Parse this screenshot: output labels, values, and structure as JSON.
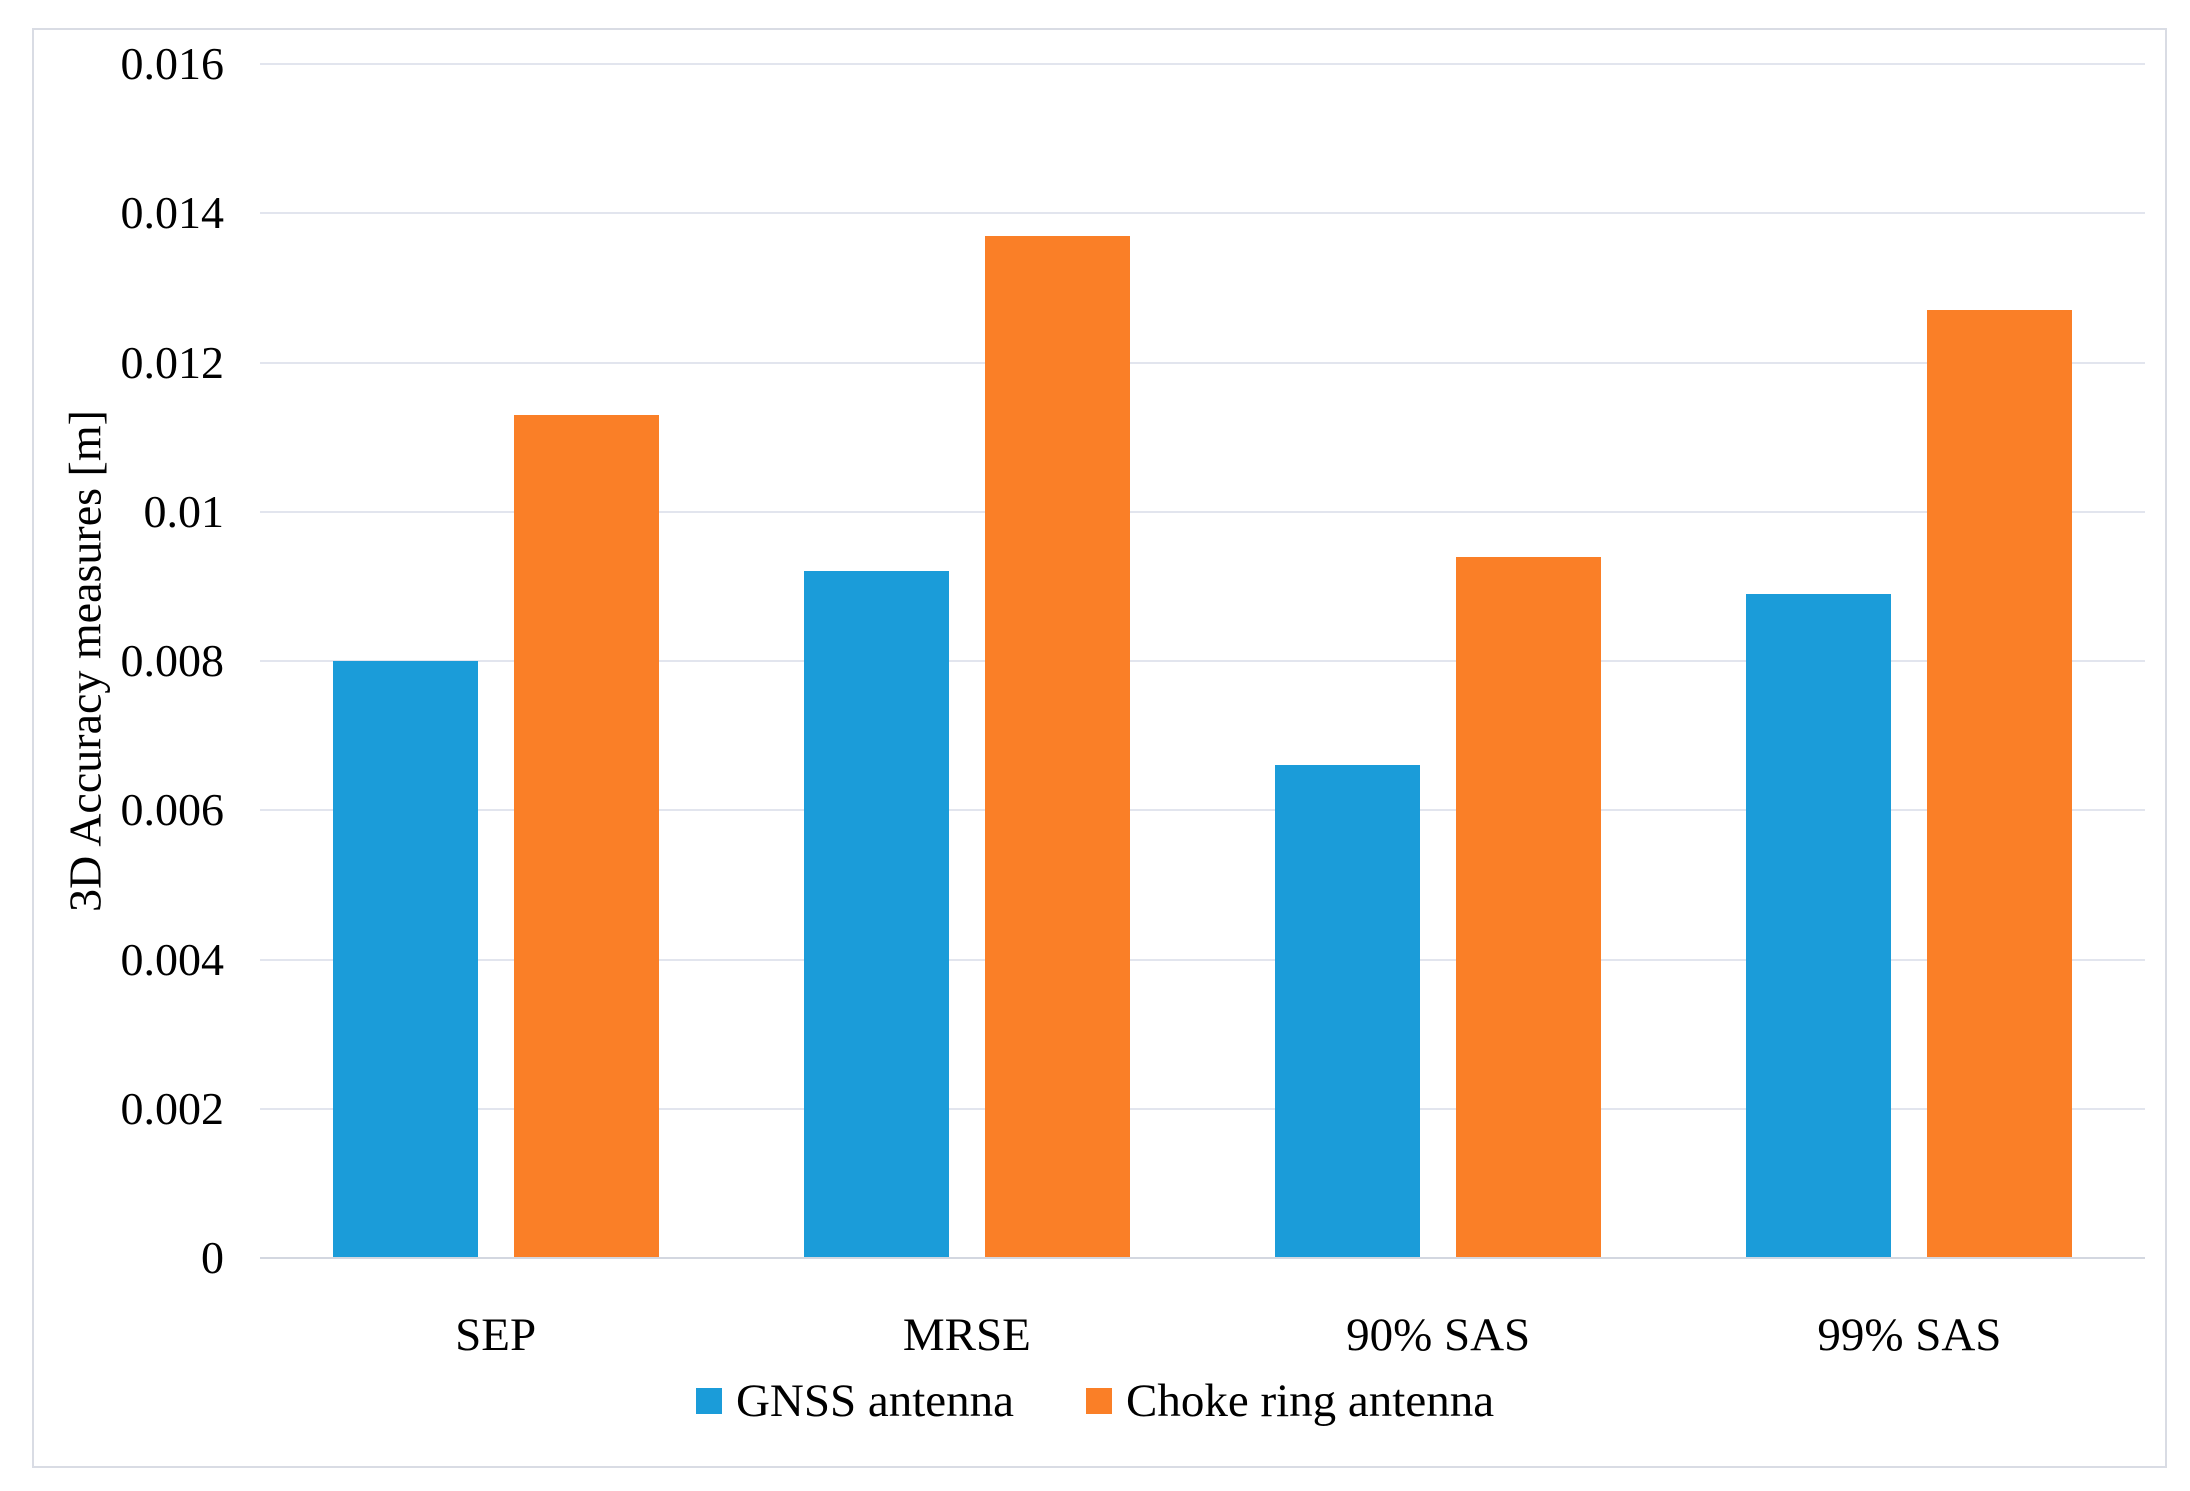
{
  "chart_data": {
    "type": "bar",
    "title": "",
    "xlabel": "",
    "ylabel": "3D Accuracy measures [m]",
    "categories": [
      "SEP",
      "MRSE",
      "90% SAS",
      "99% SAS"
    ],
    "series": [
      {
        "name": "GNSS antenna",
        "color": "#1b9cd9",
        "values": [
          0.008,
          0.0092,
          0.0066,
          0.0089
        ]
      },
      {
        "name": "Choke ring antenna",
        "color": "#fa7f27",
        "values": [
          0.0113,
          0.0137,
          0.0094,
          0.0127
        ]
      }
    ],
    "ylim": [
      0,
      0.016
    ],
    "yticks": [
      {
        "value": 0,
        "label": "0"
      },
      {
        "value": 0.002,
        "label": "0.002"
      },
      {
        "value": 0.004,
        "label": "0.004"
      },
      {
        "value": 0.006,
        "label": "0.006"
      },
      {
        "value": 0.008,
        "label": "0.008"
      },
      {
        "value": 0.01,
        "label": "0.01"
      },
      {
        "value": 0.012,
        "label": "0.012"
      },
      {
        "value": 0.014,
        "label": "0.014"
      },
      {
        "value": 0.016,
        "label": "0.016"
      }
    ],
    "grid": true,
    "legend_position": "bottom-center",
    "colors": {
      "gridline": "#e2e5ee",
      "axis_line": "#d3d7e0",
      "chart_border": "#d9dce4",
      "text": "#000000",
      "background": "#ffffff"
    }
  }
}
